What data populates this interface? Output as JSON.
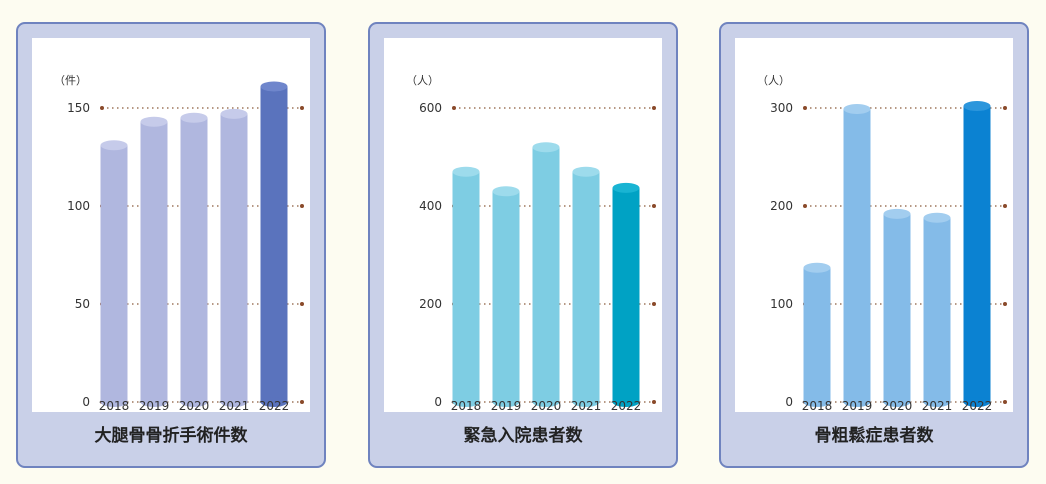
{
  "chart_data": [
    {
      "type": "bar",
      "title": "大腿骨骨折手術件数",
      "unit_label": "（件）",
      "categories": [
        "2018",
        "2019",
        "2020",
        "2021",
        "2022"
      ],
      "values": [
        131,
        143,
        145,
        147,
        161
      ],
      "yticks": [
        0,
        50,
        100,
        150
      ],
      "ylim": [
        0,
        150
      ],
      "grid": true,
      "colors": {
        "bar": "#b0b7df",
        "bar_top": "#c6cbea",
        "highlight": "#5a73bd",
        "highlight_top": "#6f86cc"
      }
    },
    {
      "type": "bar",
      "title": "緊急入院患者数",
      "unit_label": "（人）",
      "categories": [
        "2018",
        "2019",
        "2020",
        "2021",
        "2022"
      ],
      "values": [
        470,
        430,
        520,
        470,
        437
      ],
      "yticks": [
        0,
        200,
        400,
        600
      ],
      "ylim": [
        0,
        600
      ],
      "grid": true,
      "colors": {
        "bar": "#7ecde3",
        "bar_top": "#9ddbec",
        "highlight": "#00a2c4",
        "highlight_top": "#19b4d3"
      }
    },
    {
      "type": "bar",
      "title": "骨粗鬆症患者数",
      "unit_label": "（人）",
      "categories": [
        "2018",
        "2019",
        "2020",
        "2021",
        "2022"
      ],
      "values": [
        137,
        299,
        192,
        188,
        302
      ],
      "yticks": [
        0,
        100,
        200,
        300
      ],
      "ylim": [
        0,
        300
      ],
      "grid": true,
      "colors": {
        "bar": "#84bbe8",
        "bar_top": "#a2cdef",
        "highlight": "#0b82d2",
        "highlight_top": "#2c96dc"
      }
    }
  ]
}
